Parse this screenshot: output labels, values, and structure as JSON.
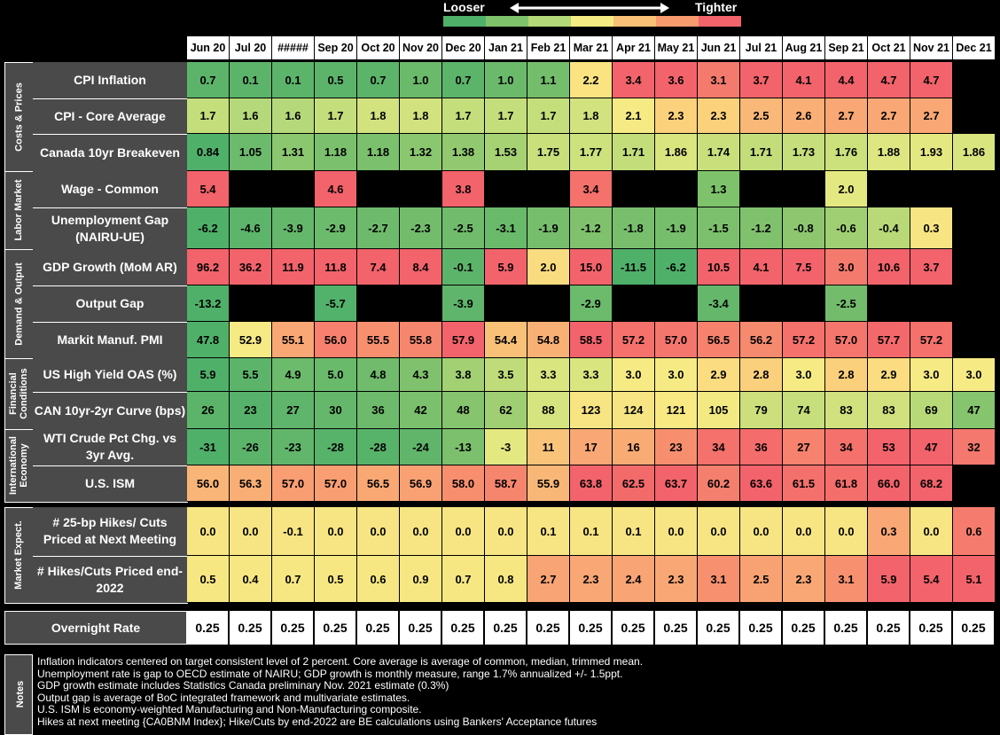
{
  "legend": {
    "looser": "Looser",
    "tighter": "Tighter",
    "colors": [
      "#4fb06a",
      "#7ec36b",
      "#b3d878",
      "#f5ec84",
      "#f9c177",
      "#f79b6f",
      "#f2636b"
    ]
  },
  "chart_data": {
    "type": "table",
    "title": "",
    "columns": [
      "Jun 20",
      "Jul 20",
      "#####",
      "Sep 20",
      "Oct 20",
      "Nov 20",
      "Dec 20",
      "Jan 21",
      "Feb 21",
      "Mar 21",
      "Apr 21",
      "May 21",
      "Jun 21",
      "Jul 21",
      "Aug 21",
      "Sep 21",
      "Oct 21",
      "Nov 21",
      "Dec 21"
    ],
    "sections": [
      {
        "name": "Costs & Prices",
        "rows": [
          {
            "label": "CPI Inflation",
            "values": [
              "0.7",
              "0.1",
              "0.1",
              "0.5",
              "0.7",
              "1.0",
              "0.7",
              "1.0",
              "1.1",
              "2.2",
              "3.4",
              "3.6",
              "3.1",
              "3.7",
              "4.1",
              "4.4",
              "4.7",
              "4.7",
              ""
            ],
            "colors": [
              "#5cb46b",
              "#5cb46b",
              "#5cb46b",
              "#5cb46b",
              "#5cb46b",
              "#6bba6b",
              "#5cb46b",
              "#6bba6b",
              "#74bd6b",
              "#fbe382",
              "#f2636b",
              "#f2636b",
              "#f47a6d",
              "#f2636b",
              "#f2636b",
              "#f2636b",
              "#f2636b",
              "#f2636b",
              null
            ]
          },
          {
            "label": "CPI - Core Average",
            "values": [
              "1.7",
              "1.6",
              "1.6",
              "1.7",
              "1.8",
              "1.8",
              "1.7",
              "1.7",
              "1.7",
              "1.8",
              "2.1",
              "2.3",
              "2.3",
              "2.5",
              "2.6",
              "2.7",
              "2.7",
              "2.7",
              ""
            ],
            "colors": [
              "#c4de7c",
              "#b5d97a",
              "#b5d97a",
              "#c4de7c",
              "#d2e27f",
              "#d2e27f",
              "#c4de7c",
              "#c4de7c",
              "#c4de7c",
              "#d2e27f",
              "#f6ea84",
              "#fbd17c",
              "#fbd17c",
              "#f9b877",
              "#f9af75",
              "#f9a774",
              "#f9a774",
              "#f9a774",
              null
            ]
          },
          {
            "label": "Canada 10yr Breakeven",
            "values": [
              "0.84",
              "1.05",
              "1.31",
              "1.18",
              "1.18",
              "1.32",
              "1.38",
              "1.53",
              "1.75",
              "1.77",
              "1.71",
              "1.86",
              "1.74",
              "1.71",
              "1.73",
              "1.76",
              "1.88",
              "1.93",
              "1.86"
            ],
            "colors": [
              "#4fb06a",
              "#6cba6c",
              "#8bc76f",
              "#7bc06d",
              "#7bc06d",
              "#8bc76f",
              "#92c970",
              "#a6d274",
              "#c9df7c",
              "#cde17d",
              "#c3dd7b",
              "#d9e57f",
              "#c9df7c",
              "#c3dd7b",
              "#c6de7b",
              "#cce07c",
              "#dde680",
              "#e4e881",
              "#d9e57f"
            ]
          }
        ]
      },
      {
        "name": "Labor Market",
        "rows": [
          {
            "label": "Wage - Common",
            "values": [
              "5.4",
              "",
              "",
              "4.6",
              "",
              "",
              "3.8",
              "",
              "",
              "3.4",
              "",
              "",
              "1.3",
              "",
              "",
              "2.0",
              "",
              "",
              ""
            ],
            "colors": [
              "#f2636b",
              null,
              null,
              "#f2636b",
              null,
              null,
              "#f2636b",
              null,
              null,
              "#f4716c",
              null,
              null,
              "#7ec36b",
              null,
              null,
              "#e4e881",
              null,
              null,
              null
            ]
          },
          {
            "label": "Unemployment Gap (NAIRU-UE)",
            "values": [
              "-6.2",
              "-4.6",
              "-3.9",
              "-2.9",
              "-2.7",
              "-2.3",
              "-2.5",
              "-3.1",
              "-1.9",
              "-1.2",
              "-1.8",
              "-1.9",
              "-1.5",
              "-1.2",
              "-0.8",
              "-0.6",
              "-0.4",
              "0.3",
              ""
            ],
            "colors": [
              "#4fb06a",
              "#5db46b",
              "#64b76b",
              "#6cba6c",
              "#6eba6c",
              "#72bc6c",
              "#70bb6c",
              "#6aba6c",
              "#76bd6c",
              "#80c16d",
              "#78be6c",
              "#76bd6c",
              "#7cc06d",
              "#80c16d",
              "#8ec66f",
              "#a0cf73",
              "#b9d978",
              "#f7e583",
              null
            ]
          }
        ]
      },
      {
        "name": "Demand & Output",
        "rows": [
          {
            "label": "GDP Growth (MoM AR)",
            "values": [
              "96.2",
              "36.2",
              "11.9",
              "11.8",
              "7.4",
              "8.4",
              "-0.1",
              "5.9",
              "2.0",
              "15.0",
              "-11.5",
              "-6.2",
              "10.5",
              "4.1",
              "7.5",
              "3.0",
              "10.6",
              "3.7",
              ""
            ],
            "colors": [
              "#f2636b",
              "#f2636b",
              "#f2636b",
              "#f2636b",
              "#f2636b",
              "#f2636b",
              "#5cb46b",
              "#f2636b",
              "#f9dc80",
              "#f2636b",
              "#4fb06a",
              "#4fb06a",
              "#f2636b",
              "#f2636b",
              "#f2636b",
              "#f47a6d",
              "#f2636b",
              "#f2636b",
              null
            ]
          },
          {
            "label": "Output Gap",
            "values": [
              "-13.2",
              "",
              "",
              "-5.7",
              "",
              "",
              "-3.9",
              "",
              "",
              "-2.9",
              "",
              "",
              "-3.4",
              "",
              "",
              "-2.5",
              "",
              "",
              ""
            ],
            "colors": [
              "#4fb06a",
              null,
              null,
              "#52b16a",
              null,
              null,
              "#5fb56b",
              null,
              null,
              "#6cba6c",
              null,
              null,
              "#64b76b",
              null,
              null,
              "#72bc6c",
              null,
              null,
              null
            ]
          },
          {
            "label": "Markit Manuf. PMI",
            "values": [
              "47.8",
              "52.9",
              "55.1",
              "56.0",
              "55.5",
              "55.8",
              "57.9",
              "54.4",
              "54.8",
              "58.5",
              "57.2",
              "57.0",
              "56.5",
              "56.2",
              "57.2",
              "57.0",
              "57.7",
              "57.2",
              ""
            ],
            "colors": [
              "#4fb06a",
              "#f6ea84",
              "#f9a774",
              "#f7806e",
              "#f8906f",
              "#f7866e",
              "#f2636b",
              "#f9c177",
              "#f9b075",
              "#f2636b",
              "#f4716c",
              "#f4766d",
              "#f6826e",
              "#f68a6f",
              "#f4716c",
              "#f4766d",
              "#f2686b",
              "#f4716c",
              null
            ]
          }
        ]
      },
      {
        "name": "Financial Conditions",
        "rows": [
          {
            "label": "US High Yield OAS (%)",
            "values": [
              "5.9",
              "5.5",
              "4.9",
              "5.0",
              "4.8",
              "4.3",
              "3.8",
              "3.5",
              "3.3",
              "3.3",
              "3.0",
              "3.0",
              "2.9",
              "2.8",
              "3.0",
              "2.8",
              "2.9",
              "3.0",
              "3.0"
            ],
            "colors": [
              "#4fb06a",
              "#5cb46b",
              "#6cba6c",
              "#6aba6c",
              "#70bb6c",
              "#80c16d",
              "#a2d073",
              "#c0dc7a",
              "#d9e57f",
              "#d9e57f",
              "#f6ea84",
              "#f6ea84",
              "#fbdc80",
              "#fbd07c",
              "#f6ea84",
              "#fbd07c",
              "#fbdc80",
              "#f6ea84",
              "#f6ea84"
            ]
          },
          {
            "label": "CAN 10yr-2yr Curve (bps)",
            "values": [
              "26",
              "23",
              "27",
              "30",
              "36",
              "42",
              "48",
              "62",
              "88",
              "123",
              "124",
              "121",
              "105",
              "79",
              "74",
              "83",
              "83",
              "69",
              "47"
            ],
            "colors": [
              "#5cb46b",
              "#56b26a",
              "#5fb56b",
              "#64b76b",
              "#6eba6c",
              "#7bc06d",
              "#86c46e",
              "#a0cf73",
              "#d5e47e",
              "#f7e583",
              "#f7e583",
              "#f9e983",
              "#f2e982",
              "#ccdf7c",
              "#c6de7b",
              "#d0e17d",
              "#d0e17d",
              "#b8d978",
              "#86c46e"
            ]
          }
        ]
      },
      {
        "name": "International Economy",
        "rows": [
          {
            "label": "WTI Crude Pct Chg. vs 3yr Avg.",
            "values": [
              "-31",
              "-26",
              "-23",
              "-28",
              "-28",
              "-24",
              "-13",
              "-3",
              "11",
              "17",
              "16",
              "23",
              "34",
              "36",
              "27",
              "34",
              "53",
              "47",
              "32"
            ],
            "colors": [
              "#4fb06a",
              "#5cb46b",
              "#62b66b",
              "#58b36a",
              "#58b36a",
              "#60b56b",
              "#7cc06d",
              "#e4e881",
              "#f9c479",
              "#f9a774",
              "#f9ab74",
              "#f78f6f",
              "#f4716c",
              "#f46c6b",
              "#f7836e",
              "#f4716c",
              "#f2636b",
              "#f2636b",
              "#f4786d"
            ]
          },
          {
            "label": "U.S. ISM",
            "values": [
              "56.0",
              "56.3",
              "57.0",
              "57.0",
              "56.5",
              "56.9",
              "58.0",
              "58.7",
              "55.9",
              "63.8",
              "62.5",
              "63.7",
              "60.2",
              "63.6",
              "61.5",
              "61.8",
              "66.0",
              "68.2",
              ""
            ],
            "colors": [
              "#f9b577",
              "#f9ae75",
              "#f99e72",
              "#f99e72",
              "#f9a874",
              "#f9a173",
              "#f78f6f",
              "#f6856e",
              "#f9b777",
              "#f2636b",
              "#f36a6b",
              "#f2636b",
              "#f57f6e",
              "#f2636b",
              "#f4706c",
              "#f46e6b",
              "#f2636b",
              "#f2636b",
              null
            ]
          }
        ]
      },
      {
        "name": "Market Expect.",
        "rows": [
          {
            "label": "# 25-bp Hikes/ Cuts Priced at Next Meeting",
            "values": [
              "0.0",
              "0.0",
              "-0.1",
              "0.0",
              "0.0",
              "0.0",
              "0.0",
              "0.0",
              "0.1",
              "0.1",
              "0.1",
              "0.0",
              "0.0",
              "0.0",
              "0.0",
              "0.0",
              "0.3",
              "0.0",
              "0.6"
            ],
            "colors": [
              "#f7e583",
              "#f7e583",
              "#f7e583",
              "#f7e583",
              "#f7e583",
              "#f7e583",
              "#f7e583",
              "#f7e583",
              "#f7e583",
              "#f7e583",
              "#f7e583",
              "#f7e583",
              "#f7e583",
              "#f7e583",
              "#f7e583",
              "#f7e583",
              "#f9a774",
              "#f7e583",
              "#f57b6e"
            ]
          },
          {
            "label": "# Hikes/Cuts Priced end-2022",
            "values": [
              "0.5",
              "0.4",
              "0.7",
              "0.5",
              "0.6",
              "0.9",
              "0.7",
              "0.8",
              "2.7",
              "2.3",
              "2.4",
              "2.3",
              "3.1",
              "2.5",
              "2.3",
              "3.1",
              "5.9",
              "5.4",
              "5.1"
            ],
            "colors": [
              "#f6e783",
              "#f6e783",
              "#f6e783",
              "#f6e783",
              "#f6e783",
              "#f6e783",
              "#f6e783",
              "#f6e783",
              "#f8a474",
              "#f9a774",
              "#f8a474",
              "#f9a774",
              "#f6906f",
              "#f8a274",
              "#f9a774",
              "#f6906f",
              "#f2636b",
              "#f2636b",
              "#f2636b"
            ]
          }
        ]
      }
    ],
    "overnight": {
      "label": "Overnight Rate",
      "values": [
        "0.25",
        "0.25",
        "0.25",
        "0.25",
        "0.25",
        "0.25",
        "0.25",
        "0.25",
        "0.25",
        "0.25",
        "0.25",
        "0.25",
        "0.25",
        "0.25",
        "0.25",
        "0.25",
        "0.25",
        "0.25",
        "0.25"
      ]
    }
  },
  "notes": {
    "title": "Notes",
    "lines": [
      "Inflation indicators centered on target consistent level of 2 percent. Core average is average of common, median, trimmed mean.",
      "Unemployment rate is gap to OECD estimate of NAIRU; GDP growth is monthly measure, range 1.7% annualized +/- 1.5ppt.",
      "GDP growth estimate includes Statistics Canada preliminary Nov. 2021 estimate (0.3%)",
      "Output gap is average of BoC integrated framework and multivariate estimates.",
      "U.S. ISM is economy-weighted Manufacturing and Non-Manufacturing composite.",
      "Hikes at next meeting {CA0BNM Index}; Hike/Cuts by end-2022 are BE calculations using Bankers' Acceptance futures"
    ]
  }
}
